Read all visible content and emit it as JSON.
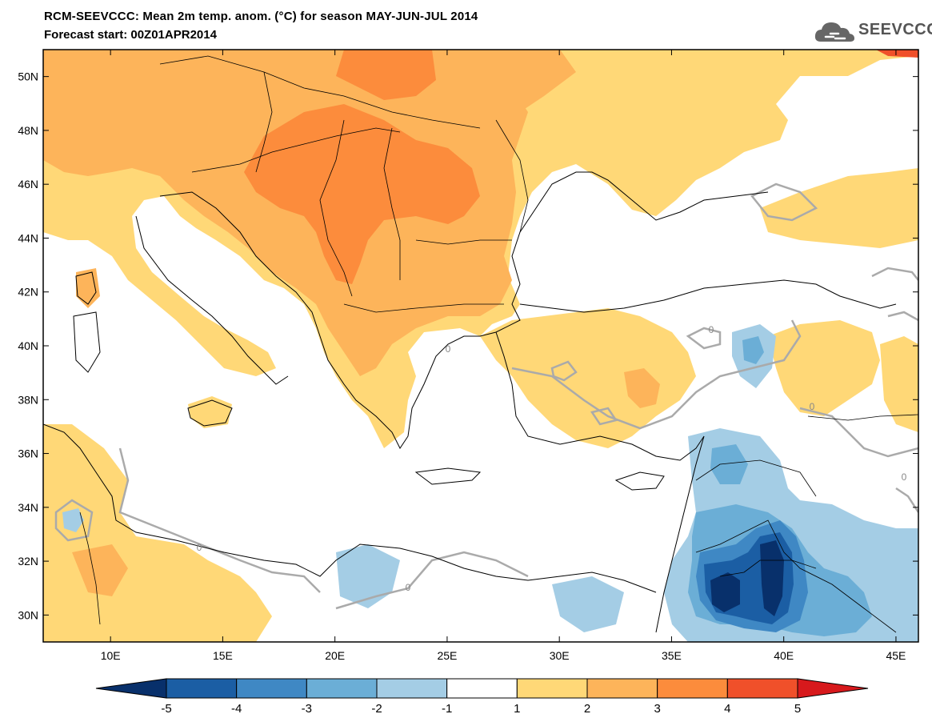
{
  "header": {
    "title": "RCM-SEEVCCC: Mean 2m temp. anom. (°C) for season MAY-JUN-JUL 2014",
    "subtitle": "Forecast start: 00Z01APR2014",
    "logo_text": "SEEVCCC",
    "logo_icon": "cloud-icon"
  },
  "map": {
    "lat_labels": [
      "50N",
      "48N",
      "46N",
      "44N",
      "42N",
      "40N",
      "38N",
      "36N",
      "34N",
      "32N",
      "30N"
    ],
    "lat_values": [
      50,
      48,
      46,
      44,
      42,
      40,
      38,
      36,
      34,
      32,
      30
    ],
    "lon_labels": [
      "10E",
      "15E",
      "20E",
      "25E",
      "30E",
      "35E",
      "40E",
      "45E"
    ],
    "lon_values": [
      10,
      15,
      20,
      25,
      30,
      35,
      40,
      45
    ],
    "contour_labels": [
      "0",
      "0",
      "0",
      "0",
      "0",
      "0"
    ],
    "colors": {
      "sea": "#ffffff",
      "anom_1_2": "#ffd877",
      "anom_2_3": "#fdb45a",
      "anom_3_4": "#fc8c3c",
      "anom_neg1_neg2": "#a4cde5",
      "anom_neg2_neg3": "#6baed6",
      "anom_neg3_neg4": "#3f88c4",
      "anom_neg4_neg5": "#1b5ea4",
      "anom_lt_neg5": "#08306b",
      "zero_contour": "#aaaaaa",
      "coast": "#000000"
    }
  },
  "colorbar": {
    "labels": [
      "-5",
      "-4",
      "-3",
      "-2",
      "-1",
      "1",
      "2",
      "3",
      "4",
      "5"
    ],
    "colors": [
      "#08306b",
      "#1b5ea4",
      "#3f88c4",
      "#6baed6",
      "#a4cde5",
      "#ffffff",
      "#ffd877",
      "#fdb45a",
      "#fc8c3c",
      "#f0502a",
      "#d7191c"
    ]
  }
}
